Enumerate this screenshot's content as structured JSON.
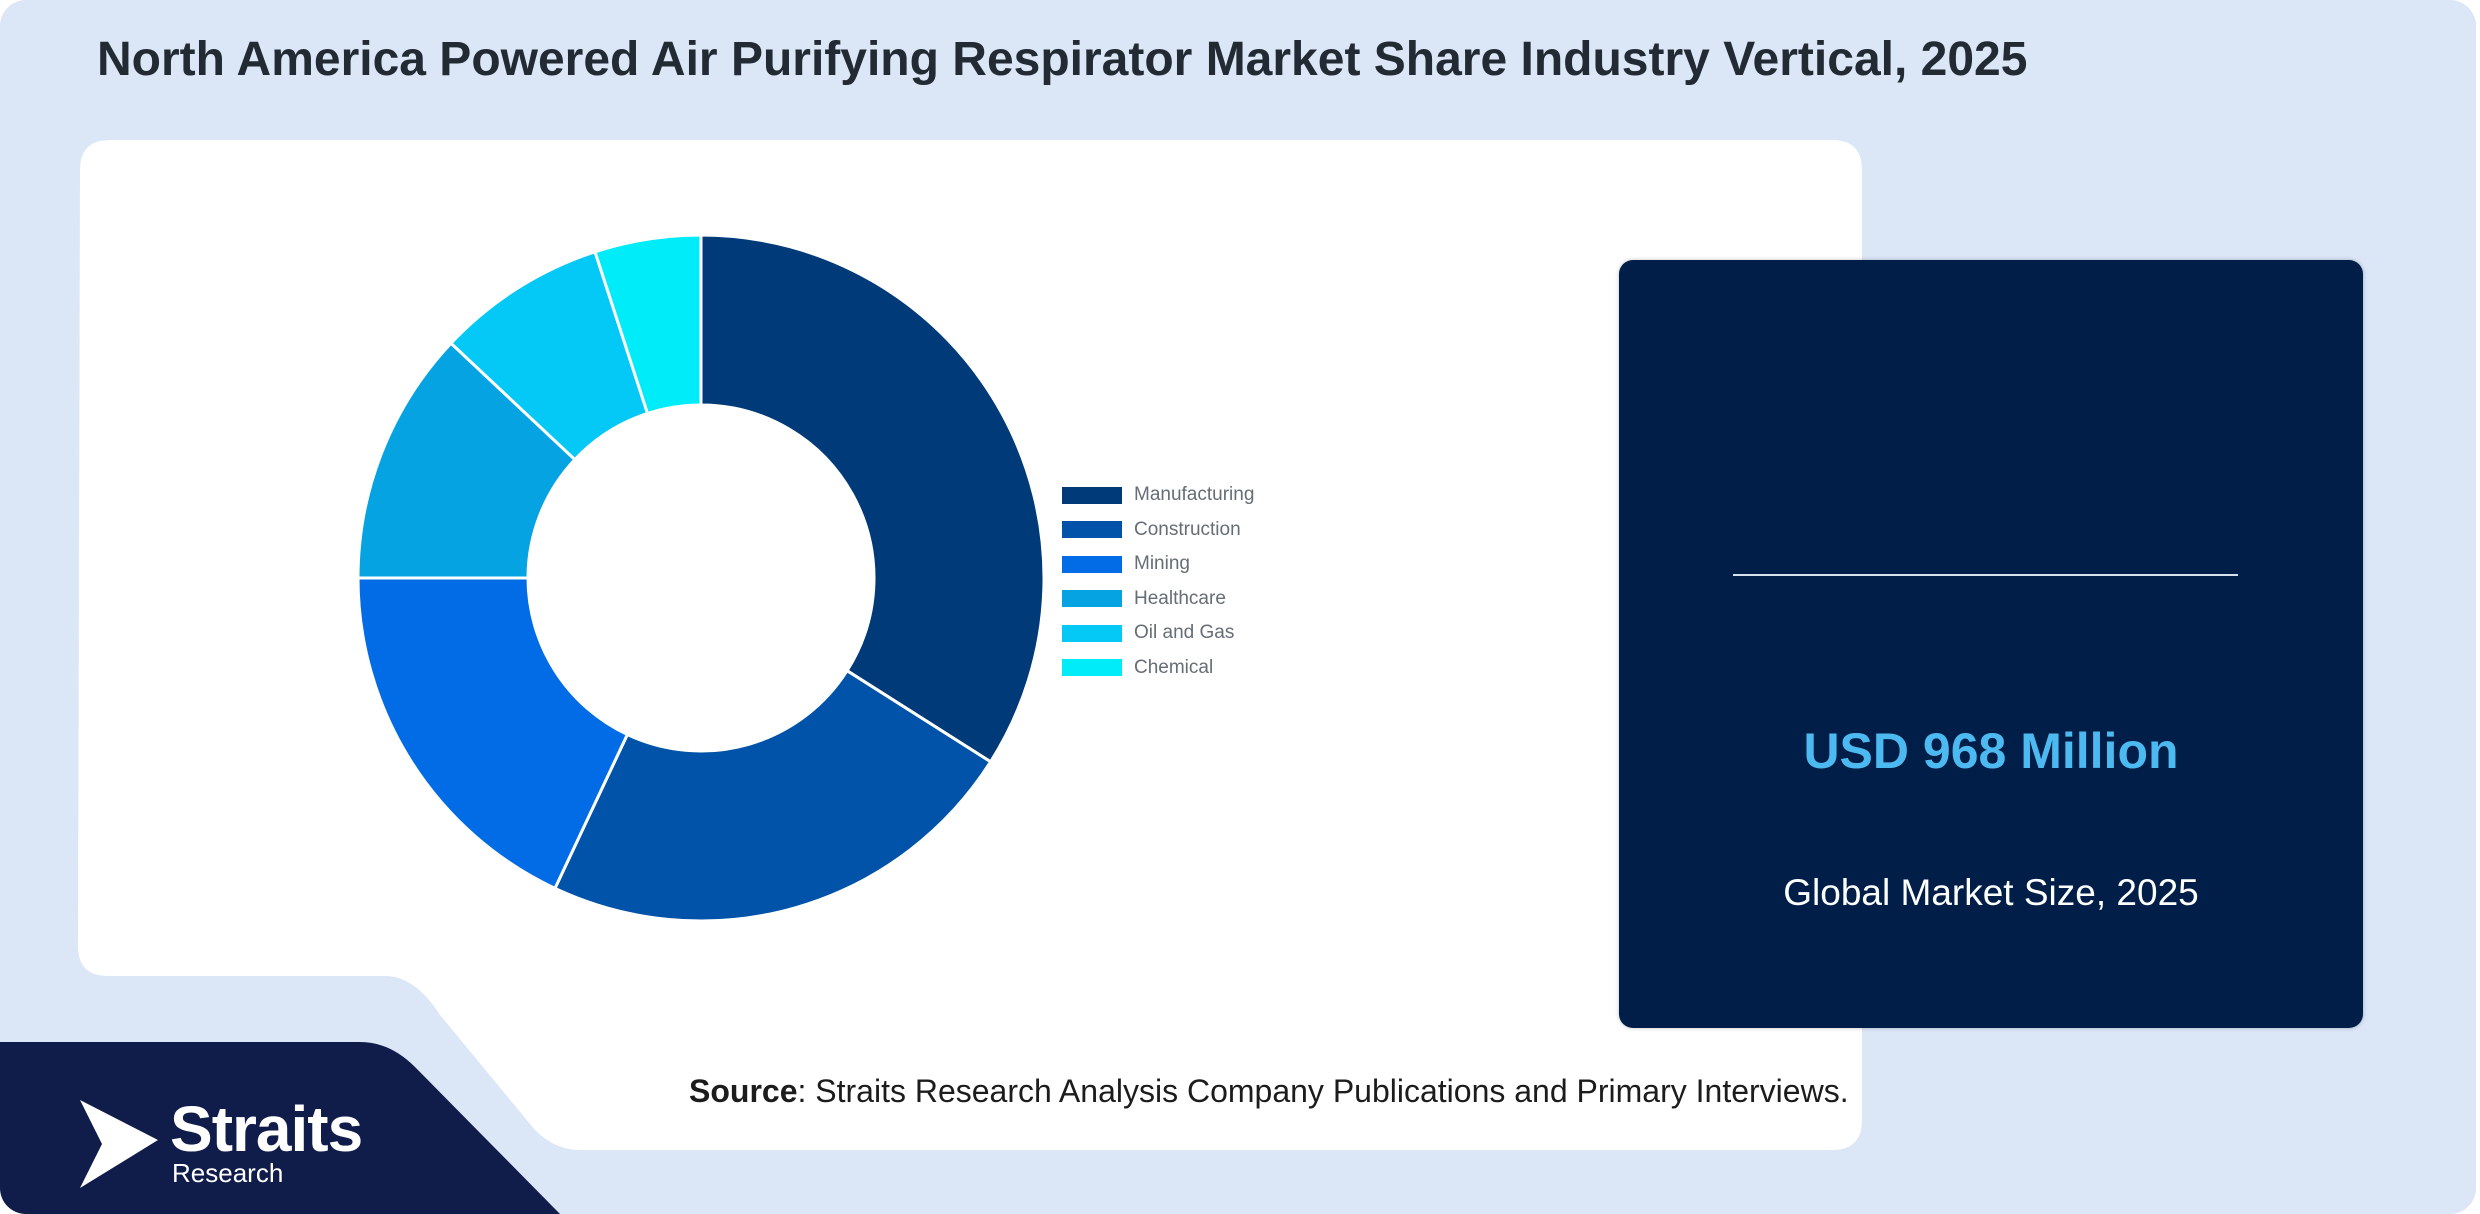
{
  "title": "North America Powered Air Purifying Respirator Market Share Industry Vertical, 2025",
  "chart_data": {
    "type": "pie",
    "categories": [
      "Manufacturing",
      "Construction",
      "Mining",
      "Healthcare",
      "Oil and Gas",
      "Chemical"
    ],
    "values": [
      34,
      23,
      18,
      12,
      8,
      5
    ],
    "colors": [
      "#003a78",
      "#0053a8",
      "#026ce6",
      "#06a3e2",
      "#04c8f6",
      "#00ecf8"
    ],
    "legend_position": "right"
  },
  "stat": {
    "value": "USD 968 Million",
    "label": "Global Market Size, 2025"
  },
  "source": {
    "prefix": "Source",
    "text": ": Straits Research Analysis Company Publications and Primary Interviews."
  },
  "logo": {
    "name": "Straits",
    "sub": "Research"
  }
}
